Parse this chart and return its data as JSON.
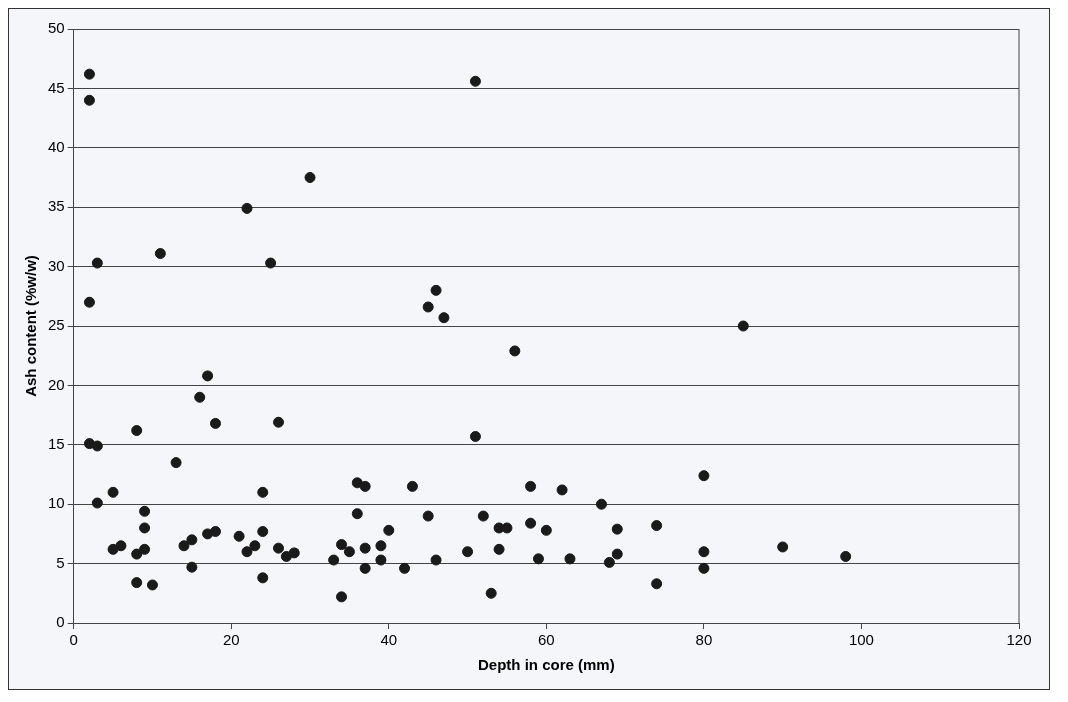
{
  "chart_data": {
    "type": "scatter",
    "xlabel": "Depth in core (mm)",
    "ylabel": "Ash content (%w/w)",
    "xlim": [
      0,
      120
    ],
    "xticks": [
      0,
      20,
      40,
      60,
      80,
      100,
      120
    ],
    "ylim": [
      0,
      50
    ],
    "yticks": [
      0,
      5,
      10,
      15,
      20,
      25,
      30,
      35,
      40,
      45,
      50
    ],
    "grid": "y",
    "legend": false,
    "marker": "circle",
    "series": [
      {
        "color": "#1a1a1a",
        "x": [
          2,
          2,
          3,
          2,
          2,
          3,
          3,
          5,
          5,
          6,
          8,
          8,
          8,
          9,
          9,
          9,
          10,
          11,
          13,
          14,
          15,
          15,
          16,
          17,
          17,
          18,
          18,
          21,
          22,
          22,
          23,
          24,
          24,
          24,
          25,
          26,
          26,
          27,
          28,
          30,
          33,
          34,
          34,
          35,
          36,
          36,
          37,
          37,
          37,
          39,
          39,
          40,
          42,
          43,
          45,
          45,
          46,
          46,
          47,
          50,
          51,
          51,
          52,
          53,
          54,
          54,
          55,
          56,
          58,
          58,
          59,
          60,
          62,
          63,
          67,
          68,
          69,
          69,
          74,
          74,
          80,
          80,
          80,
          85,
          90,
          98
        ],
        "values": [
          46.2,
          44,
          30.3,
          27,
          15.1,
          14.9,
          10.1,
          11,
          6.2,
          6.5,
          16.2,
          5.8,
          3.4,
          6.2,
          8,
          9.4,
          3.2,
          31.1,
          13.5,
          6.5,
          7,
          4.7,
          19,
          20.8,
          7.5,
          7.7,
          16.8,
          7.3,
          6,
          34.9,
          6.5,
          11,
          7.7,
          3.8,
          30.3,
          16.9,
          6.3,
          5.6,
          5.9,
          37.5,
          5.3,
          6.6,
          2.2,
          6,
          11.8,
          9.2,
          11.5,
          6.3,
          4.6,
          6.5,
          5.3,
          7.8,
          4.6,
          11.5,
          9,
          26.6,
          28,
          5.3,
          25.7,
          6,
          45.6,
          15.7,
          9,
          2.5,
          6.2,
          8,
          8,
          22.9,
          11.5,
          8.4,
          5.4,
          7.8,
          11.2,
          5.4,
          10,
          5.1,
          7.9,
          5.8,
          8.2,
          3.3,
          12.4,
          6,
          4.6,
          25,
          6.4,
          5.6
        ]
      }
    ]
  }
}
